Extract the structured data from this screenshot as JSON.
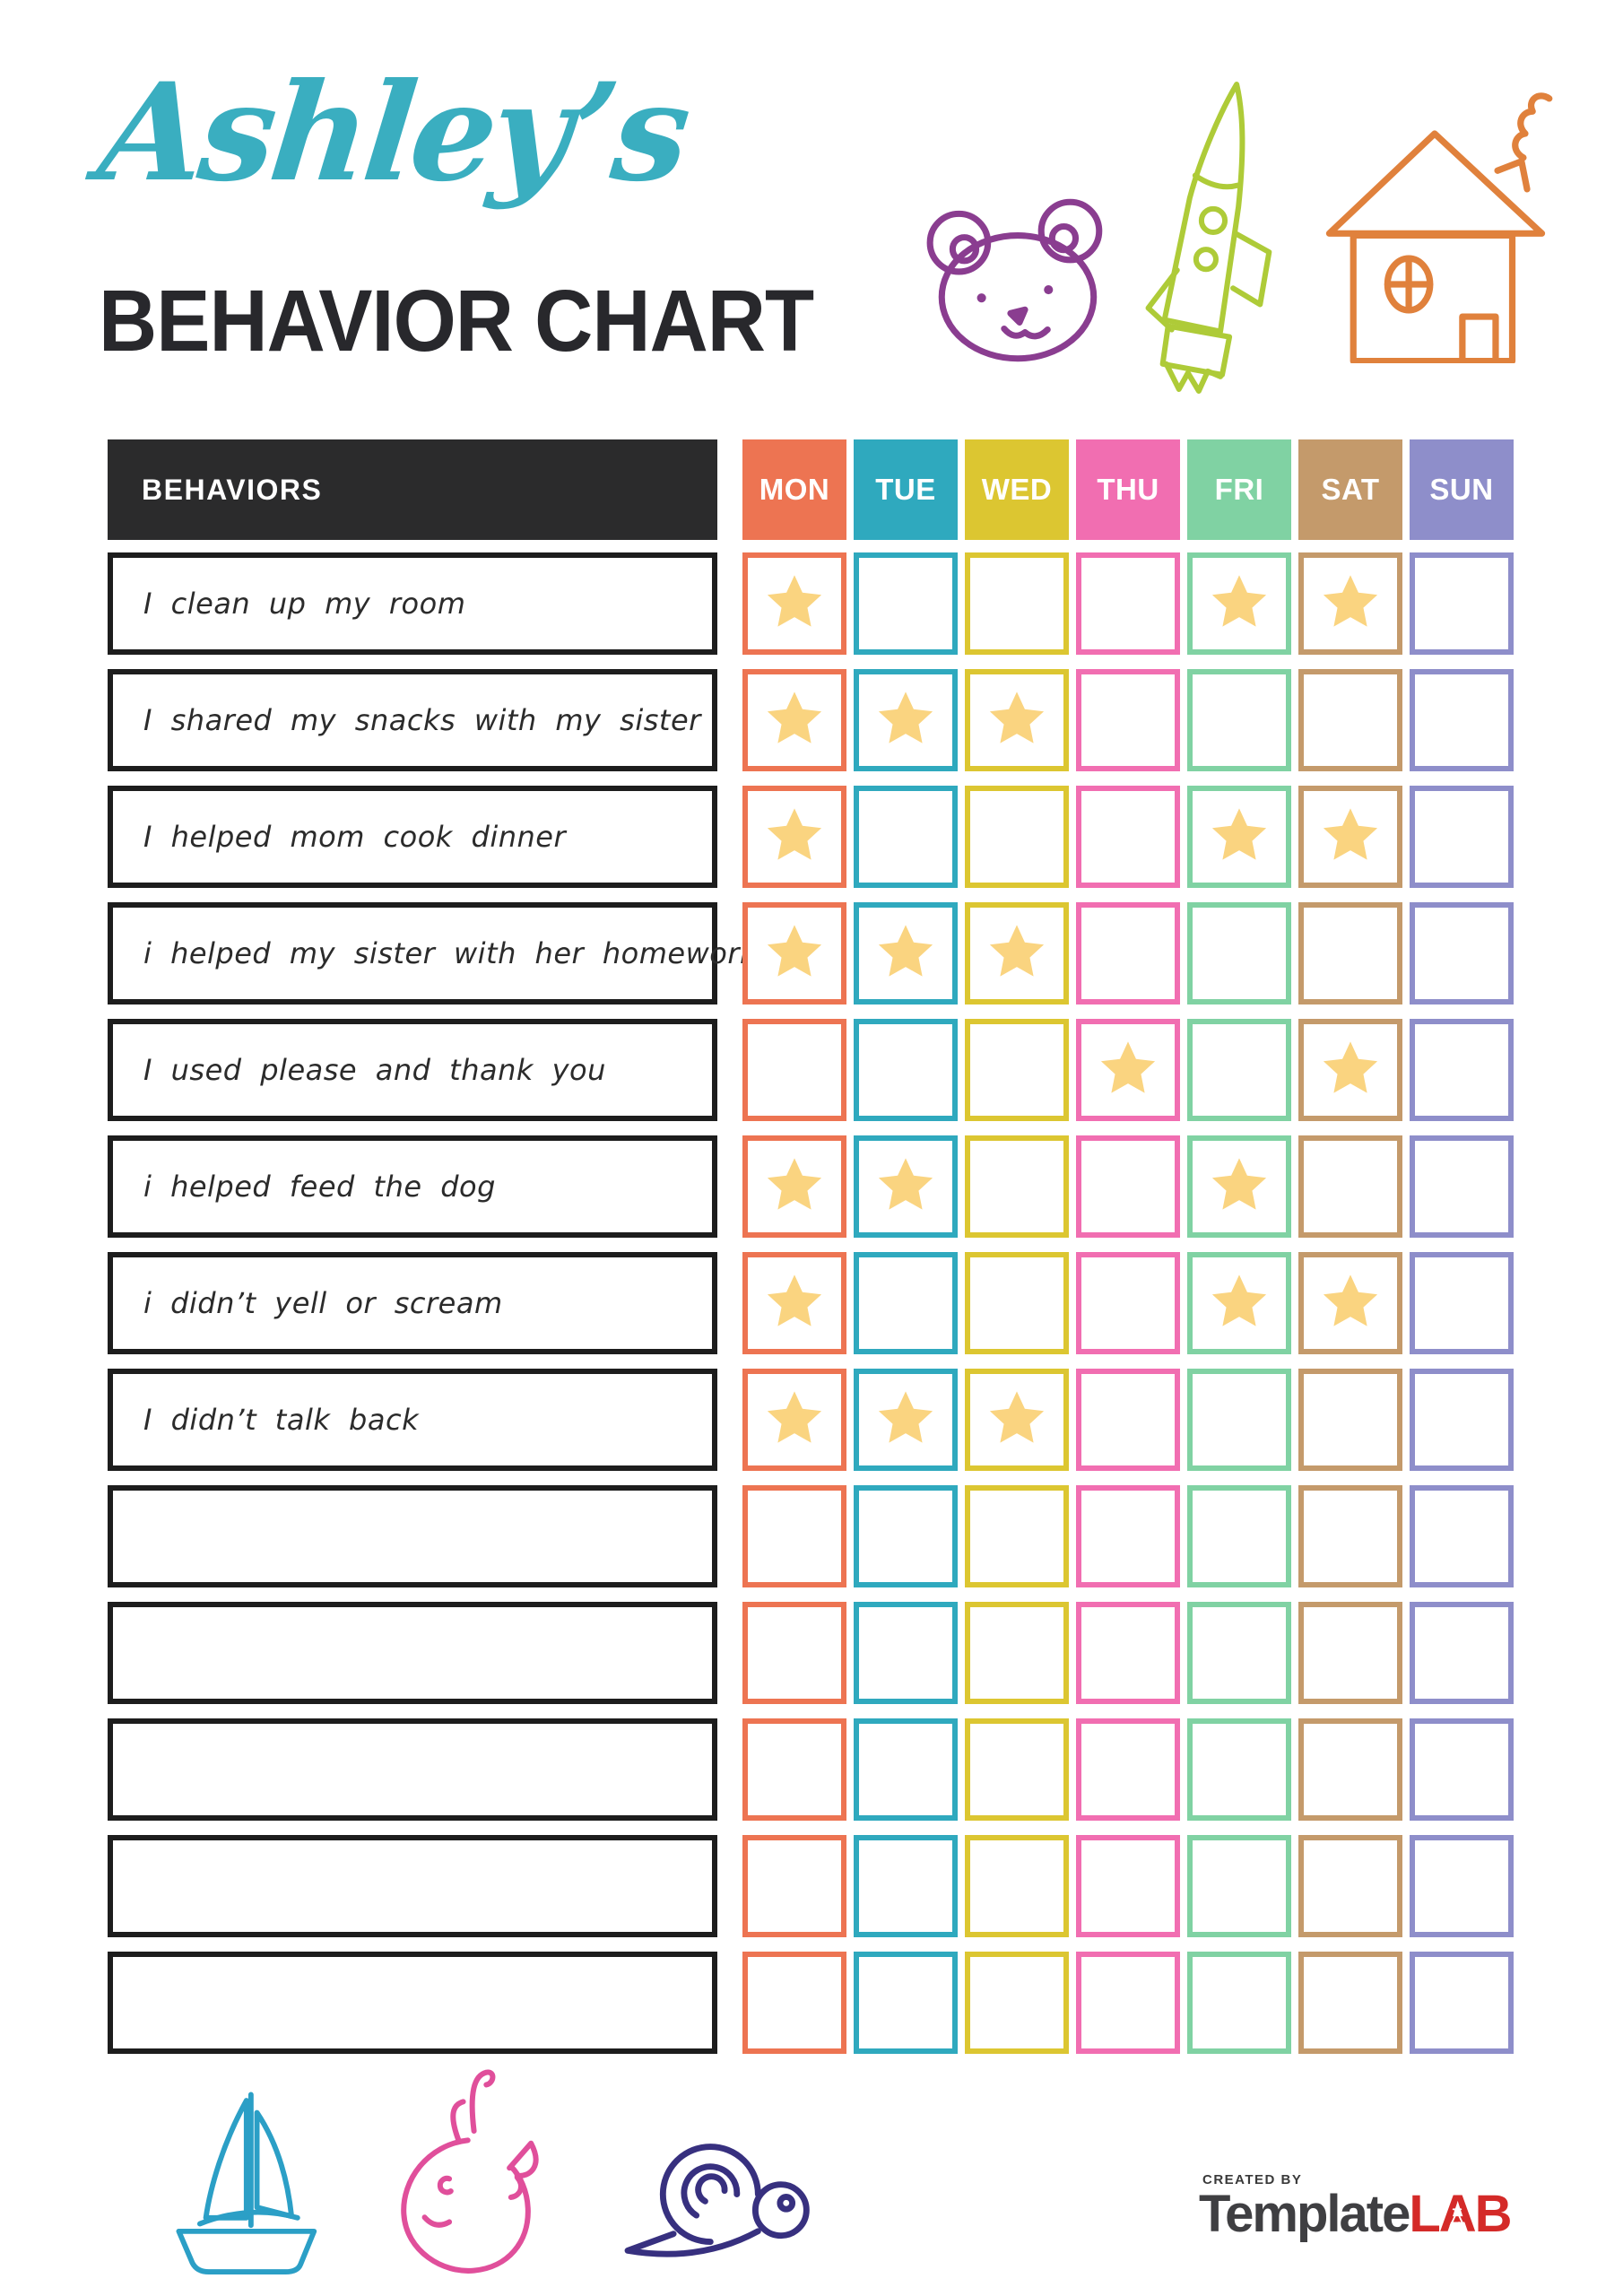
{
  "header": {
    "script_title": "Ashley’s",
    "script_color": "#3aaec0",
    "main_title": "BEHAVIOR CHART",
    "main_color": "#28282c"
  },
  "doodles": {
    "bear": "#8a3d90",
    "rocket": "#aecb38",
    "house": "#e0813c",
    "boat": "#2b9fc6",
    "whale": "#e04f9b",
    "snail": "#37307f"
  },
  "table": {
    "behaviors_header": "BEHAVIORS",
    "header_bg": "#2b2b2c",
    "star_color": "#fad480",
    "days": [
      {
        "label": "MON",
        "color": "#ed7452"
      },
      {
        "label": "TUE",
        "color": "#2fa9be"
      },
      {
        "label": "WED",
        "color": "#dcc631"
      },
      {
        "label": "THU",
        "color": "#f16eb1"
      },
      {
        "label": "FRI",
        "color": "#80d2a3"
      },
      {
        "label": "SAT",
        "color": "#c49a6b"
      },
      {
        "label": "SUN",
        "color": "#8e8eca"
      }
    ],
    "rows": [
      {
        "behavior": "I clean up my room",
        "stars": [
          1,
          0,
          0,
          0,
          1,
          1,
          0
        ]
      },
      {
        "behavior": "I shared my snacks with my sister",
        "stars": [
          1,
          1,
          1,
          0,
          0,
          0,
          0
        ]
      },
      {
        "behavior": "I helped mom cook dinner",
        "stars": [
          1,
          0,
          0,
          0,
          1,
          1,
          0
        ]
      },
      {
        "behavior": "i helped my sister with her homework",
        "stars": [
          1,
          1,
          1,
          0,
          0,
          0,
          0
        ]
      },
      {
        "behavior": "I used please and thank you",
        "stars": [
          0,
          0,
          0,
          1,
          0,
          1,
          0
        ]
      },
      {
        "behavior": "i helped feed the dog",
        "stars": [
          1,
          1,
          0,
          0,
          1,
          0,
          0
        ]
      },
      {
        "behavior": "i didn’t yell or scream",
        "stars": [
          1,
          0,
          0,
          0,
          1,
          1,
          0
        ]
      },
      {
        "behavior": "I didn’t talk back",
        "stars": [
          1,
          1,
          1,
          0,
          0,
          0,
          0
        ]
      },
      {
        "behavior": "",
        "stars": [
          0,
          0,
          0,
          0,
          0,
          0,
          0
        ]
      },
      {
        "behavior": "",
        "stars": [
          0,
          0,
          0,
          0,
          0,
          0,
          0
        ]
      },
      {
        "behavior": "",
        "stars": [
          0,
          0,
          0,
          0,
          0,
          0,
          0
        ]
      },
      {
        "behavior": "",
        "stars": [
          0,
          0,
          0,
          0,
          0,
          0,
          0
        ]
      },
      {
        "behavior": "",
        "stars": [
          0,
          0,
          0,
          0,
          0,
          0,
          0
        ]
      }
    ]
  },
  "footer": {
    "created_by": "CREATED BY",
    "brand_name": "Template",
    "brand_name_color": "#3f3f42",
    "brand_suffix": "LAB",
    "brand_suffix_color": "#d42a28"
  }
}
